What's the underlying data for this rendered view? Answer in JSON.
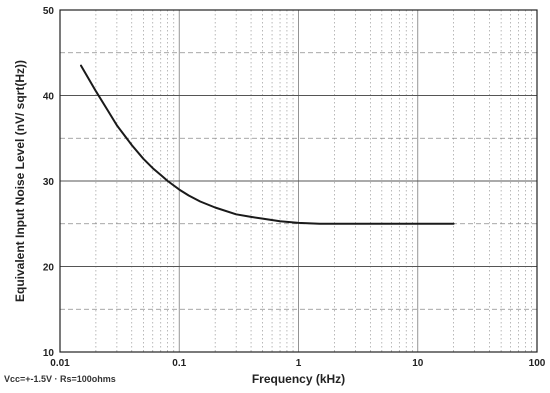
{
  "chart_data": {
    "type": "line",
    "title": "",
    "xlabel": "Frequency (kHz)",
    "ylabel": "Equivalent Input Noise Level (nV/ sqrt(Hz))",
    "xscale": "log",
    "xlim": [
      0.01,
      100
    ],
    "ylim": [
      10,
      50
    ],
    "x_ticks": [
      "0.01",
      "0.1",
      "1",
      "10",
      "100"
    ],
    "y_ticks": [
      "10",
      "20",
      "30",
      "40",
      "50"
    ],
    "grid": true,
    "legend": "none",
    "annotation": "Vcc=+-1.5V · Rs=100ohms",
    "series": [
      {
        "x": [
          0.015,
          0.02,
          0.025,
          0.03,
          0.04,
          0.05,
          0.06,
          0.07,
          0.08,
          0.1,
          0.12,
          0.15,
          0.2,
          0.3,
          0.4,
          0.5,
          0.7,
          1.0,
          1.5,
          2,
          3,
          5,
          7,
          10,
          15,
          20
        ],
        "y": [
          43.5,
          40.5,
          38.3,
          36.5,
          34.2,
          32.6,
          31.5,
          30.7,
          30.0,
          29.0,
          28.3,
          27.6,
          26.9,
          26.1,
          25.8,
          25.6,
          25.3,
          25.1,
          25.0,
          25.0,
          25.0,
          25.0,
          25.0,
          25.0,
          25.0,
          25.0
        ]
      }
    ],
    "colors": {
      "line": "#1a1a1a",
      "grid": "#8a8a8a",
      "frame": "#222222"
    }
  }
}
